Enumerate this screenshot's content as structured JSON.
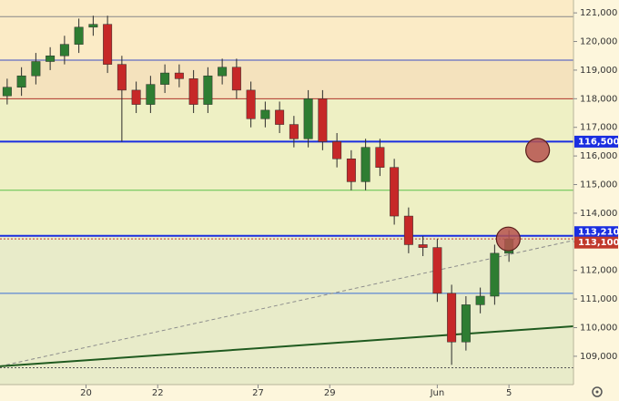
{
  "chart_data": {
    "type": "candlestick",
    "x": [
      1,
      3,
      5,
      7,
      9,
      11,
      13,
      15,
      17,
      19,
      21,
      23,
      25,
      27,
      29,
      31,
      33,
      35,
      37,
      39,
      41,
      43,
      45,
      47,
      49,
      51,
      53,
      55,
      57,
      59,
      61,
      63,
      65,
      67,
      69,
      71
    ],
    "open": [
      118100,
      118400,
      118800,
      119300,
      119500,
      119900,
      120500,
      120600,
      119200,
      118300,
      117800,
      118500,
      118900,
      118700,
      117800,
      118800,
      119100,
      118300,
      117300,
      117600,
      117100,
      116600,
      118000,
      116500,
      115900,
      115100,
      116300,
      115600,
      113900,
      112900,
      112800,
      111200,
      109500,
      110800,
      111100,
      112600
    ],
    "high": [
      118700,
      119100,
      119600,
      119800,
      120200,
      120800,
      120900,
      120900,
      119500,
      118600,
      118800,
      119200,
      119200,
      119000,
      119100,
      119400,
      119400,
      118600,
      117900,
      117900,
      117400,
      118300,
      118300,
      116800,
      116200,
      116600,
      116600,
      115900,
      114200,
      113200,
      113100,
      111500,
      111100,
      111400,
      112900,
      113400
    ],
    "low": [
      117800,
      118100,
      118500,
      119000,
      119200,
      119600,
      120200,
      118900,
      116500,
      117500,
      117500,
      118200,
      118400,
      117500,
      117500,
      118500,
      118000,
      117000,
      117000,
      116800,
      116300,
      116300,
      116200,
      115600,
      114800,
      114800,
      115300,
      113600,
      112600,
      112500,
      110900,
      108700,
      109200,
      110500,
      110800,
      112300
    ],
    "close": [
      118400,
      118800,
      119300,
      119500,
      119900,
      120500,
      120600,
      119200,
      118300,
      117800,
      118500,
      118900,
      118700,
      117800,
      118800,
      119100,
      118300,
      117300,
      117600,
      117100,
      116600,
      118000,
      116500,
      115900,
      115100,
      116300,
      115600,
      113900,
      112900,
      112800,
      111200,
      109500,
      110800,
      111100,
      112600,
      113100
    ],
    "up_color": "#2e7d32",
    "down_color": "#c62828",
    "xlim": [
      0,
      80
    ],
    "ylim": [
      108010,
      121450
    ],
    "xticks": [
      {
        "value": 12,
        "label": "20"
      },
      {
        "value": 22,
        "label": "22"
      },
      {
        "value": 36,
        "label": "27"
      },
      {
        "value": 46,
        "label": "29"
      },
      {
        "value": 61,
        "label": "Jun"
      },
      {
        "value": 71,
        "label": "5"
      }
    ],
    "yticks": [
      {
        "value": 109000,
        "label": "109,000"
      },
      {
        "value": 110000,
        "label": "110,000"
      },
      {
        "value": 111000,
        "label": "111,000"
      },
      {
        "value": 112000,
        "label": "112,000"
      },
      {
        "value": 113000,
        "label": "113,000"
      },
      {
        "value": 114000,
        "label": "114,000"
      },
      {
        "value": 115000,
        "label": "115,000"
      },
      {
        "value": 116000,
        "label": "116,000"
      },
      {
        "value": 117000,
        "label": "117,000"
      },
      {
        "value": 118000,
        "label": "118,000"
      },
      {
        "value": 119000,
        "label": "119,000"
      },
      {
        "value": 120000,
        "label": "120,000"
      },
      {
        "value": 121000,
        "label": "121,000"
      }
    ],
    "bands": [
      {
        "from": 119350,
        "to": 121450,
        "color": "#fbebc6"
      },
      {
        "from": 118000,
        "to": 119350,
        "color": "#f4e2bd"
      },
      {
        "from": 113210,
        "to": 118000,
        "color": "#eef0c4"
      },
      {
        "from": 108010,
        "to": 113210,
        "color": "#e8ebc9"
      }
    ],
    "levels": [
      {
        "value": 120870,
        "color": "#888888",
        "width": 1
      },
      {
        "value": 119350,
        "color": "#3b4fc4",
        "width": 1
      },
      {
        "value": 118000,
        "color": "#b0322a",
        "width": 1
      },
      {
        "value": 116500,
        "color": "#1a2ee0",
        "width": 2,
        "label": "116,500"
      },
      {
        "value": 114800,
        "color": "#5cc04a",
        "width": 1
      },
      {
        "value": 113210,
        "color": "#1a2ee0",
        "width": 2,
        "label": "113,210"
      },
      {
        "value": 113100,
        "color": "#c0392b",
        "width": 1,
        "dash": "2,2",
        "label": "113,100"
      },
      {
        "value": 111200,
        "color": "#3b6fd4",
        "width": 1
      },
      {
        "value": 108600,
        "color": "#555555",
        "width": 1,
        "dash": "2,2"
      }
    ],
    "trendlines": [
      {
        "x": [
          0,
          80
        ],
        "y": [
          108650,
          113050
        ],
        "color": "#8a8a8a",
        "width": 1,
        "dash": "4,3"
      },
      {
        "x": [
          0,
          80
        ],
        "y": [
          108650,
          110050
        ],
        "color": "#1f5a1f",
        "width": 2
      }
    ],
    "markers": {
      "x": [
        75,
        70.9
      ],
      "y": [
        116200,
        113100
      ],
      "color": "#b5524d"
    }
  }
}
